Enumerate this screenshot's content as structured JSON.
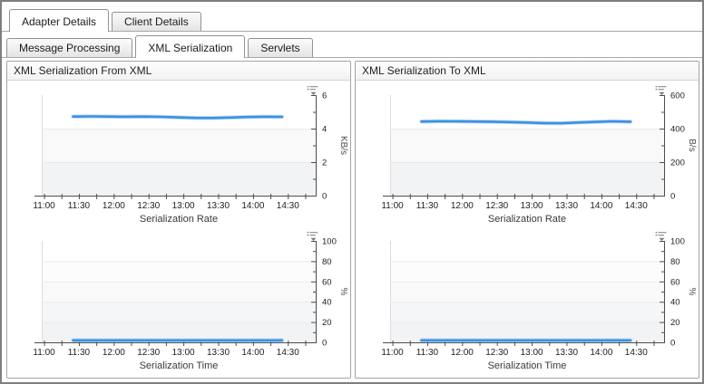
{
  "tabs_primary": [
    {
      "label": "Adapter Details",
      "active": true
    },
    {
      "label": "Client Details",
      "active": false
    }
  ],
  "tabs_secondary": [
    {
      "label": "Message Processing",
      "active": false
    },
    {
      "label": "XML Serialization",
      "active": true
    },
    {
      "label": "Servlets",
      "active": false
    }
  ],
  "panels": [
    {
      "title": "XML Serialization From XML",
      "chart_indexes": [
        0,
        1
      ]
    },
    {
      "title": "XML Serialization To XML",
      "chart_indexes": [
        2,
        3
      ]
    }
  ],
  "icons": {
    "chart_menu": "legend-dropdown-icon"
  },
  "colors": {
    "series_line": "#3b91e2",
    "series_halo": "#a9cdf0",
    "axis": "#4d4d4d",
    "gridline": "#e9eaec",
    "band_dark": "#f2f3f5",
    "tick_label": "#1e1e1e",
    "axis_title": "#4a4a4a"
  },
  "chart_data": [
    {
      "type": "line",
      "title": "Serialization Rate",
      "ylabel": "KB/s",
      "ylim": [
        0,
        6
      ],
      "y_major_step": 2,
      "y_minor_step": 1,
      "y_tick_labels": [
        "0",
        "2",
        "4",
        "6"
      ],
      "x_domain": [
        "10:58",
        "14:54"
      ],
      "x_labels": [
        "11:00",
        "11:30",
        "12:00",
        "12:30",
        "13:00",
        "13:30",
        "14:00",
        "14:30"
      ],
      "x_minor_step_min": 15,
      "grid": true,
      "legend": "none",
      "x": [
        "11:25",
        "11:40",
        "11:55",
        "12:10",
        "12:25",
        "12:40",
        "12:55",
        "13:10",
        "13:25",
        "13:40",
        "13:55",
        "14:10",
        "14:25"
      ],
      "values": [
        4.72,
        4.73,
        4.72,
        4.71,
        4.72,
        4.7,
        4.67,
        4.64,
        4.63,
        4.66,
        4.69,
        4.71,
        4.7
      ]
    },
    {
      "type": "line",
      "title": "Serialization Time",
      "ylabel": "%",
      "ylim": [
        0,
        100
      ],
      "y_major_step": 20,
      "y_minor_step": 10,
      "y_tick_labels": [
        "0",
        "20",
        "40",
        "60",
        "80",
        "100"
      ],
      "x_domain": [
        "10:58",
        "14:54"
      ],
      "x_labels": [
        "11:00",
        "11:30",
        "12:00",
        "12:30",
        "13:00",
        "13:30",
        "14:00",
        "14:30"
      ],
      "x_minor_step_min": 15,
      "grid": true,
      "legend": "none",
      "x": [
        "11:25",
        "11:40",
        "11:55",
        "12:10",
        "12:25",
        "12:40",
        "12:55",
        "13:10",
        "13:25",
        "13:40",
        "13:55",
        "14:10",
        "14:25"
      ],
      "values": [
        2,
        2,
        2,
        2,
        2,
        2,
        2,
        2,
        2,
        2,
        2,
        2,
        2
      ]
    },
    {
      "type": "line",
      "title": "Serialization Rate",
      "ylabel": "B/s",
      "ylim": [
        0,
        600
      ],
      "y_major_step": 200,
      "y_minor_step": 100,
      "y_tick_labels": [
        "0",
        "200",
        "400",
        "600"
      ],
      "x_domain": [
        "10:58",
        "14:54"
      ],
      "x_labels": [
        "11:00",
        "11:30",
        "12:00",
        "12:30",
        "13:00",
        "13:30",
        "14:00",
        "14:30"
      ],
      "x_minor_step_min": 15,
      "grid": true,
      "legend": "none",
      "x": [
        "11:25",
        "11:40",
        "11:55",
        "12:10",
        "12:25",
        "12:40",
        "12:55",
        "13:10",
        "13:25",
        "13:40",
        "13:55",
        "14:10",
        "14:25"
      ],
      "values": [
        442,
        444,
        443,
        442,
        441,
        439,
        436,
        433,
        432,
        436,
        440,
        443,
        441
      ]
    },
    {
      "type": "line",
      "title": "Serialization Time",
      "ylabel": "%",
      "ylim": [
        0,
        100
      ],
      "y_major_step": 20,
      "y_minor_step": 10,
      "y_tick_labels": [
        "0",
        "20",
        "40",
        "60",
        "80",
        "100"
      ],
      "x_domain": [
        "10:58",
        "14:54"
      ],
      "x_labels": [
        "11:00",
        "11:30",
        "12:00",
        "12:30",
        "13:00",
        "13:30",
        "14:00",
        "14:30"
      ],
      "x_minor_step_min": 15,
      "grid": true,
      "legend": "none",
      "x": [
        "11:25",
        "11:40",
        "11:55",
        "12:10",
        "12:25",
        "12:40",
        "12:55",
        "13:10",
        "13:25",
        "13:40",
        "13:55",
        "14:10",
        "14:25"
      ],
      "values": [
        2,
        2,
        2,
        2,
        2,
        2,
        2,
        2,
        2,
        2,
        2,
        2,
        2
      ]
    }
  ]
}
